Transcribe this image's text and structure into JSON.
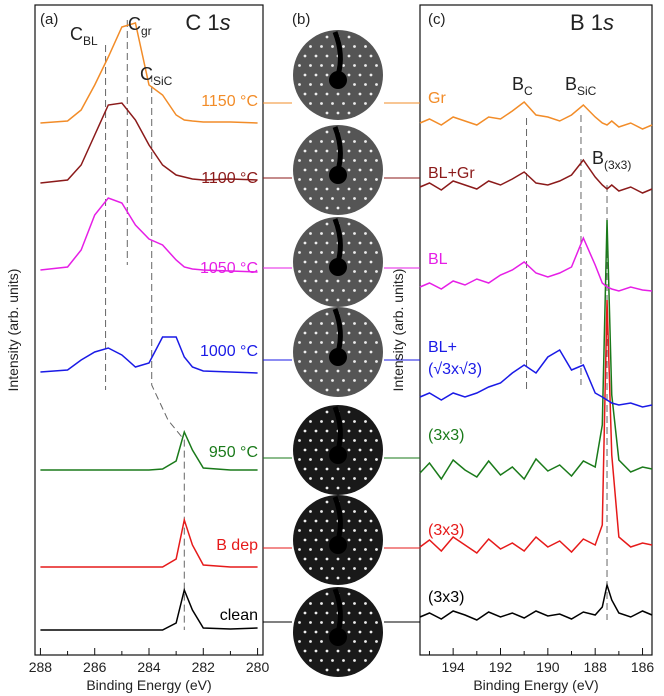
{
  "chart_data": [
    {
      "type": "line",
      "panel_label": "(a)",
      "title": {
        "text": "C 1",
        "italic": "s"
      },
      "xlabel": "Binding Energy (eV)",
      "ylabel": "Intensity (arb. units)",
      "xlim": [
        288.2,
        279.8
      ],
      "ylim": [
        0,
        650
      ],
      "xticks": [
        288,
        286,
        284,
        282,
        280
      ],
      "xminorticks": [
        287,
        285,
        283,
        281
      ],
      "x": [
        288,
        287,
        286.5,
        286,
        285.5,
        285,
        284.5,
        284,
        283.5,
        283,
        282.7,
        282.4,
        282,
        281,
        280
      ],
      "series": [
        {
          "name": "clean",
          "color": "#000000",
          "values": [
            25,
            25,
            25,
            25,
            25,
            25,
            25,
            25,
            25,
            32,
            65,
            45,
            27,
            26,
            27
          ]
        },
        {
          "name": "B dep",
          "color": "#e61a1a",
          "values": [
            88,
            88,
            88,
            88,
            88,
            88,
            88,
            88,
            88,
            96,
            135,
            110,
            90,
            88,
            88
          ]
        },
        {
          "name": "950 °C",
          "color": "#1a7a1a",
          "values": [
            185,
            185,
            185,
            185,
            185,
            185,
            185,
            185,
            186,
            194,
            223,
            205,
            187,
            185,
            185
          ]
        },
        {
          "name": "1000 °C",
          "color": "#1a1ae6",
          "values": [
            283,
            285,
            295,
            303,
            307,
            300,
            288,
            292,
            318,
            318,
            298,
            288,
            284,
            283,
            282
          ]
        },
        {
          "name": "1050 °C",
          "color": "#e61ee6",
          "values": [
            385,
            388,
            405,
            440,
            457,
            452,
            430,
            416,
            410,
            395,
            388,
            386,
            385,
            384,
            383
          ]
        },
        {
          "name": "1100 °C",
          "color": "#8b1a1a",
          "values": [
            472,
            475,
            490,
            520,
            550,
            552,
            535,
            510,
            490,
            480,
            478,
            476,
            475,
            476,
            475
          ]
        },
        {
          "name": "1150 °C",
          "color": "#f28c28",
          "values": [
            532,
            534,
            545,
            570,
            598,
            628,
            632,
            570,
            560,
            540,
            535,
            534,
            533,
            533,
            532
          ]
        }
      ],
      "annotations": [
        {
          "text": "C",
          "sub": "BL"
        },
        {
          "text": "C",
          "sub": "gr"
        },
        {
          "text": "C",
          "sub": "SiC"
        }
      ],
      "guides": [
        {
          "x": [
            285.6,
            285.6
          ],
          "y": [
            610,
            265
          ]
        },
        {
          "x": [
            284.8,
            284.8
          ],
          "y": [
            635,
            390
          ]
        },
        {
          "x": [
            283.9,
            283.9,
            283.3,
            282.7,
            282.7
          ],
          "y": [
            580,
            270,
            235,
            215,
            25
          ]
        }
      ]
    },
    {
      "type": "line",
      "panel_label": "(c)",
      "title": {
        "text": "B 1",
        "italic": "s"
      },
      "xlabel": "Binding Energy (eV)",
      "ylabel": "Intensity (arb. units)",
      "xlim": [
        195.4,
        185.6
      ],
      "ylim": [
        0,
        650
      ],
      "xticks": [
        194,
        192,
        190,
        188,
        186
      ],
      "xminorticks": [
        195,
        193,
        191,
        189,
        187
      ],
      "x": [
        195.4,
        195,
        194.5,
        194,
        193.5,
        193,
        192.5,
        192,
        191.5,
        191,
        190.5,
        190,
        189.5,
        189,
        188.5,
        188,
        187.7,
        187.5,
        187.3,
        187,
        186.5,
        186,
        185.6
      ],
      "series": [
        {
          "name": "(3x3)",
          "color": "#000000",
          "values": [
            38,
            42,
            36,
            44,
            40,
            35,
            43,
            38,
            42,
            37,
            44,
            39,
            41,
            36,
            43,
            40,
            48,
            70,
            55,
            42,
            38,
            44,
            40
          ]
        },
        {
          "name": "(3x3)",
          "color": "#e61a1a",
          "values": [
            108,
            115,
            104,
            118,
            110,
            102,
            116,
            106,
            112,
            104,
            118,
            108,
            114,
            103,
            116,
            110,
            130,
            355,
            200,
            118,
            108,
            112,
            110
          ]
        },
        {
          "name": "(3x3)",
          "color": "#1a7a1a",
          "values": [
            182,
            192,
            176,
            195,
            185,
            178,
            194,
            180,
            188,
            176,
            196,
            184,
            190,
            179,
            194,
            188,
            230,
            435,
            260,
            195,
            183,
            188,
            186
          ]
        },
        {
          "name": [
            "BL+",
            "(√3x√3)"
          ],
          "color": "#1a1ae6",
          "values": [
            258,
            262,
            255,
            262,
            258,
            262,
            268,
            272,
            282,
            290,
            282,
            298,
            305,
            285,
            290,
            262,
            258,
            255,
            252,
            250,
            252,
            248,
            250
          ]
        },
        {
          "name": "BL",
          "color": "#e61ee6",
          "values": [
            368,
            372,
            366,
            374,
            370,
            376,
            372,
            380,
            385,
            393,
            382,
            378,
            382,
            388,
            417,
            390,
            372,
            368,
            366,
            364,
            368,
            365,
            364
          ]
        },
        {
          "name": "BL+Gr",
          "color": "#8b1a1a",
          "values": [
            468,
            472,
            465,
            474,
            470,
            466,
            474,
            470,
            476,
            483,
            472,
            470,
            474,
            480,
            495,
            478,
            470,
            466,
            470,
            464,
            468,
            462,
            466
          ]
        },
        {
          "name": "Gr",
          "color": "#f28c28",
          "values": [
            532,
            536,
            530,
            538,
            534,
            530,
            538,
            536,
            544,
            553,
            540,
            538,
            534,
            540,
            550,
            538,
            532,
            530,
            534,
            528,
            532,
            526,
            530
          ]
        }
      ],
      "annotations": [
        {
          "text": "B",
          "sub": "C"
        },
        {
          "text": "B",
          "sub": "SiC"
        },
        {
          "text": "B",
          "sub": "(3x3)"
        }
      ],
      "guides": [
        {
          "x": [
            190.9,
            190.9
          ],
          "y": [
            537,
            263
          ]
        },
        {
          "x": [
            188.6,
            188.6
          ],
          "y": [
            540,
            270
          ]
        },
        {
          "x": [
            187.5,
            187.5
          ],
          "y": [
            470,
            35
          ]
        }
      ]
    }
  ],
  "leed_panel": {
    "label": "(b)"
  }
}
